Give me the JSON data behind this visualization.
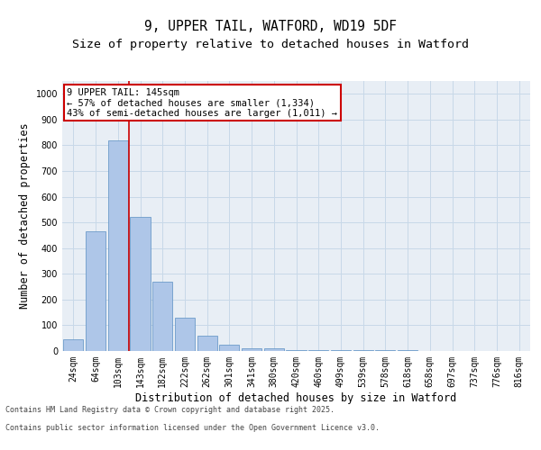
{
  "title1": "9, UPPER TAIL, WATFORD, WD19 5DF",
  "title2": "Size of property relative to detached houses in Watford",
  "xlabel": "Distribution of detached houses by size in Watford",
  "ylabel": "Number of detached properties",
  "categories": [
    "24sqm",
    "64sqm",
    "103sqm",
    "143sqm",
    "182sqm",
    "222sqm",
    "262sqm",
    "301sqm",
    "341sqm",
    "380sqm",
    "420sqm",
    "460sqm",
    "499sqm",
    "539sqm",
    "578sqm",
    "618sqm",
    "658sqm",
    "697sqm",
    "737sqm",
    "776sqm",
    "816sqm"
  ],
  "values": [
    45,
    465,
    820,
    520,
    270,
    128,
    60,
    25,
    10,
    10,
    5,
    5,
    5,
    3,
    2,
    2,
    1,
    1,
    1,
    0,
    0
  ],
  "bar_color": "#aec6e8",
  "bar_edge_color": "#5a8fc2",
  "grid_color": "#c8d8e8",
  "bg_color": "#e8eef5",
  "annotation_text": "9 UPPER TAIL: 145sqm\n← 57% of detached houses are smaller (1,334)\n43% of semi-detached houses are larger (1,011) →",
  "annotation_box_color": "#ffffff",
  "annotation_box_edge": "#cc0000",
  "vline_x_idx": 2,
  "ylim": [
    0,
    1050
  ],
  "yticks": [
    0,
    100,
    200,
    300,
    400,
    500,
    600,
    700,
    800,
    900,
    1000
  ],
  "footer1": "Contains HM Land Registry data © Crown copyright and database right 2025.",
  "footer2": "Contains public sector information licensed under the Open Government Licence v3.0.",
  "title_fontsize": 10.5,
  "subtitle_fontsize": 9.5,
  "tick_fontsize": 7,
  "label_fontsize": 8.5,
  "annotation_fontsize": 7.5,
  "footer_fontsize": 6
}
